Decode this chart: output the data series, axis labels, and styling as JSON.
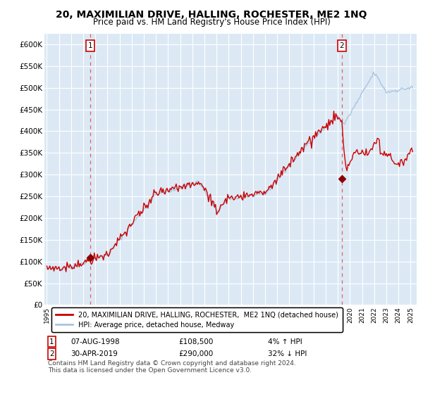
{
  "title": "20, MAXIMILIAN DRIVE, HALLING, ROCHESTER, ME2 1NQ",
  "subtitle": "Price paid vs. HM Land Registry's House Price Index (HPI)",
  "title_fontsize": 10,
  "subtitle_fontsize": 8.5,
  "ylabel_ticks": [
    "£0",
    "£50K",
    "£100K",
    "£150K",
    "£200K",
    "£250K",
    "£300K",
    "£350K",
    "£400K",
    "£450K",
    "£500K",
    "£550K",
    "£600K"
  ],
  "ytick_values": [
    0,
    50000,
    100000,
    150000,
    200000,
    250000,
    300000,
    350000,
    400000,
    450000,
    500000,
    550000,
    600000
  ],
  "ylim": [
    0,
    625000
  ],
  "xlim_start": 1994.8,
  "xlim_end": 2025.5,
  "xticks": [
    1995,
    1996,
    1997,
    1998,
    1999,
    2000,
    2001,
    2002,
    2003,
    2004,
    2005,
    2006,
    2007,
    2008,
    2009,
    2010,
    2011,
    2012,
    2013,
    2014,
    2015,
    2016,
    2017,
    2018,
    2019,
    2020,
    2021,
    2022,
    2023,
    2024,
    2025
  ],
  "hpi_color": "#aac4df",
  "price_color": "#cc0000",
  "marker_color": "#8b0000",
  "vline_color": "#e06060",
  "background_color": "#dce9f5",
  "grid_color": "#ffffff",
  "sale1_x": 1998.58,
  "sale1_y": 108500,
  "sale1_label": "1",
  "sale1_date": "07-AUG-1998",
  "sale1_price": "£108,500",
  "sale1_hpi": "4% ↑ HPI",
  "sale2_x": 2019.33,
  "sale2_y": 290000,
  "sale2_label": "2",
  "sale2_date": "30-APR-2019",
  "sale2_price": "£290,000",
  "sale2_hpi": "32% ↓ HPI",
  "legend_line1": "20, MAXIMILIAN DRIVE, HALLING, ROCHESTER,  ME2 1NQ (detached house)",
  "legend_line2": "HPI: Average price, detached house, Medway",
  "footnote": "Contains HM Land Registry data © Crown copyright and database right 2024.\nThis data is licensed under the Open Government Licence v3.0."
}
